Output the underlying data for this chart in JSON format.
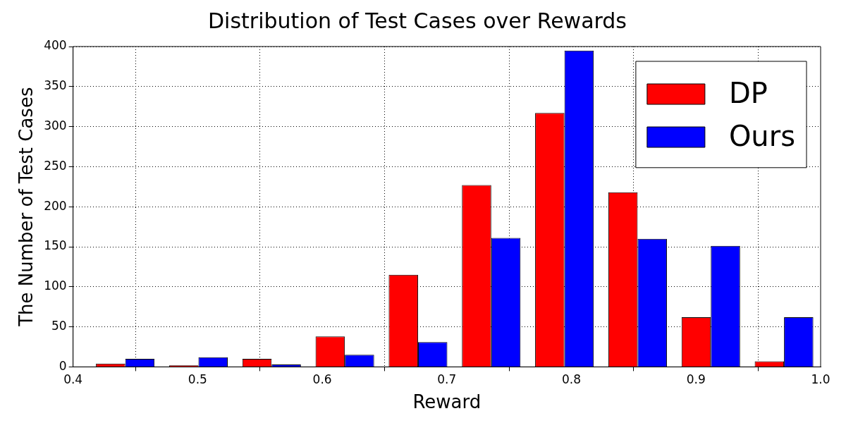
{
  "chart_data": {
    "type": "histogram",
    "title": "Distribution of Test Cases over Rewards",
    "xlabel": "Reward",
    "ylabel": "The Number of Test Cases",
    "bins": [
      0.4125,
      0.47125,
      0.53,
      0.58875,
      0.6475,
      0.70625,
      0.765,
      0.82375,
      0.8825,
      0.94125,
      1.0
    ],
    "series": [
      {
        "name": "DP",
        "color": "#ff0000",
        "values": [
          4,
          2,
          10,
          38,
          115,
          227,
          317,
          218,
          62,
          7
        ]
      },
      {
        "name": "Ours",
        "color": "#0000ff",
        "values": [
          10,
          12,
          3,
          15,
          31,
          161,
          395,
          160,
          151,
          62
        ]
      }
    ],
    "xlim": [
      0.4,
      1.0
    ],
    "xticks": [
      0.4,
      0.5,
      0.6,
      0.7,
      0.8,
      0.9,
      {
        "value": 1,
        "label": "1.0"
      }
    ],
    "ylim": [
      0,
      400
    ],
    "yticks": [
      0,
      50,
      100,
      150,
      200,
      250,
      300,
      350,
      400
    ],
    "grid": true,
    "legend": "top right"
  }
}
